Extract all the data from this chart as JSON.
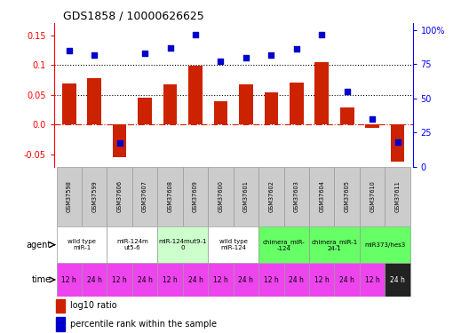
{
  "title": "GDS1858 / 10000626625",
  "samples": [
    "GSM37598",
    "GSM37599",
    "GSM37606",
    "GSM37607",
    "GSM37608",
    "GSM37609",
    "GSM37600",
    "GSM37601",
    "GSM37602",
    "GSM37603",
    "GSM37604",
    "GSM37605",
    "GSM37610",
    "GSM37611"
  ],
  "log10_ratio": [
    0.069,
    0.078,
    -0.055,
    0.046,
    0.067,
    0.099,
    0.04,
    0.068,
    0.054,
    0.07,
    0.105,
    0.029,
    -0.005,
    -0.062
  ],
  "percentile_rank": [
    85,
    82,
    17,
    83,
    87,
    97,
    77,
    80,
    82,
    86,
    97,
    55,
    35,
    18
  ],
  "agent_groups": [
    {
      "label": "wild type\nmiR-1",
      "start": 0,
      "end": 2,
      "color": "#ffffff"
    },
    {
      "label": "miR-124m\nut5-6",
      "start": 2,
      "end": 4,
      "color": "#ffffff"
    },
    {
      "label": "miR-124mut9-1\n0",
      "start": 4,
      "end": 6,
      "color": "#ccffcc"
    },
    {
      "label": "wild type\nmiR-124",
      "start": 6,
      "end": 8,
      "color": "#ffffff"
    },
    {
      "label": "chimera_miR-\n-124",
      "start": 8,
      "end": 10,
      "color": "#66ff66"
    },
    {
      "label": "chimera_miR-1\n24-1",
      "start": 10,
      "end": 12,
      "color": "#66ff66"
    },
    {
      "label": "miR373/hes3",
      "start": 12,
      "end": 14,
      "color": "#66ff66"
    }
  ],
  "time_labels": [
    "12 h",
    "24 h",
    "12 h",
    "24 h",
    "12 h",
    "24 h",
    "12 h",
    "24 h",
    "12 h",
    "24 h",
    "12 h",
    "24 h",
    "12 h",
    "24 h"
  ],
  "time_bg_last": "#222222",
  "bar_color": "#cc2200",
  "dot_color": "#0000cc",
  "time_color_normal": "#ee44ee",
  "ylim_left": [
    -0.07,
    0.17
  ],
  "ylim_right": [
    0,
    105
  ],
  "yticks_left": [
    -0.05,
    0.0,
    0.05,
    0.1,
    0.15
  ],
  "yticks_right": [
    0,
    25,
    50,
    75,
    100
  ],
  "yticklabels_right": [
    "0",
    "25",
    "50",
    "75",
    "100%"
  ],
  "hline_y": [
    0.05,
    0.1
  ],
  "zero_line_y": 0.0,
  "bg_color": "#ffffff",
  "legend_items": [
    "log10 ratio",
    "percentile rank within the sample"
  ]
}
